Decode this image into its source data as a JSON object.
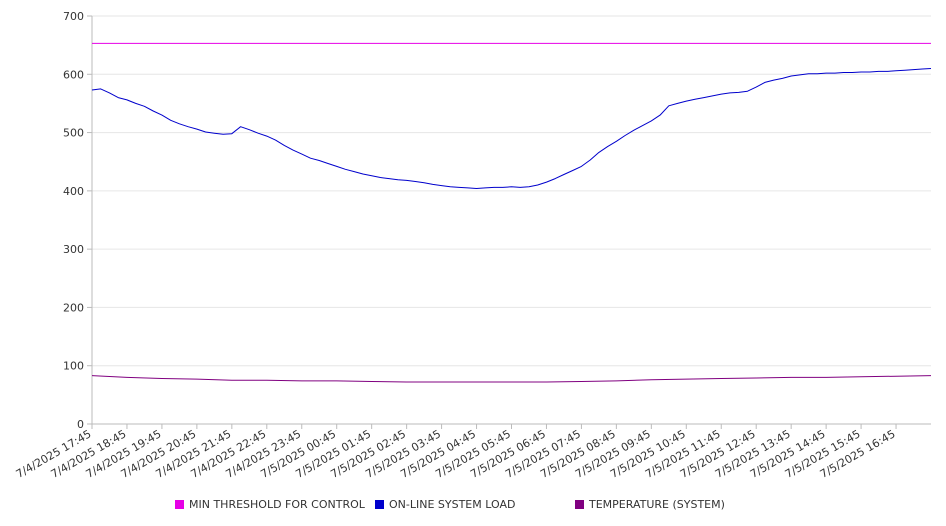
{
  "chart_data": {
    "type": "line",
    "ylim": [
      0,
      700
    ],
    "y_ticks": [
      "0",
      "100",
      "200",
      "300",
      "400",
      "500",
      "600",
      "700"
    ],
    "x_ticks": [
      "7/4/2025 17:45",
      "7/4/2025 18:45",
      "7/4/2025 19:45",
      "7/4/2025 20:45",
      "7/4/2025 21:45",
      "7/4/2025 22:45",
      "7/4/2025 23:45",
      "7/5/2025 00:45",
      "7/5/2025 01:45",
      "7/5/2025 02:45",
      "7/5/2025 03:45",
      "7/5/2025 04:45",
      "7/5/2025 05:45",
      "7/5/2025 06:45",
      "7/5/2025 07:45",
      "7/5/2025 08:45",
      "7/5/2025 09:45",
      "7/5/2025 10:45",
      "7/5/2025 11:45",
      "7/5/2025 12:45",
      "7/5/2025 13:45",
      "7/5/2025 14:45",
      "7/5/2025 15:45",
      "7/5/2025 16:45"
    ],
    "x_range": [
      "7/4/2025 17:45",
      "7/5/2025 17:45"
    ],
    "grid": true,
    "legend_position": "bottom",
    "series": [
      {
        "name": "MIN THRESHOLD FOR CONTROL",
        "color": "#e600e6",
        "points": [
          [
            "7/4/2025 17:45",
            653
          ],
          [
            "7/5/2025 17:45",
            653
          ]
        ]
      },
      {
        "name": "ON-LINE SYSTEM LOAD",
        "color": "#0000cc",
        "points": [
          [
            "7/4/2025 17:45",
            573
          ],
          [
            "7/4/2025 18:00",
            575
          ],
          [
            "7/4/2025 18:15",
            568
          ],
          [
            "7/4/2025 18:30",
            560
          ],
          [
            "7/4/2025 18:45",
            556
          ],
          [
            "7/4/2025 19:00",
            550
          ],
          [
            "7/4/2025 19:15",
            545
          ],
          [
            "7/4/2025 19:30",
            537
          ],
          [
            "7/4/2025 19:45",
            530
          ],
          [
            "7/4/2025 20:00",
            521
          ],
          [
            "7/4/2025 20:15",
            515
          ],
          [
            "7/4/2025 20:30",
            510
          ],
          [
            "7/4/2025 20:45",
            506
          ],
          [
            "7/4/2025 21:00",
            501
          ],
          [
            "7/4/2025 21:15",
            499
          ],
          [
            "7/4/2025 21:30",
            497
          ],
          [
            "7/4/2025 21:45",
            498
          ],
          [
            "7/4/2025 22:00",
            510
          ],
          [
            "7/4/2025 22:15",
            505
          ],
          [
            "7/4/2025 22:30",
            499
          ],
          [
            "7/4/2025 22:45",
            494
          ],
          [
            "7/4/2025 23:00",
            487
          ],
          [
            "7/4/2025 23:15",
            478
          ],
          [
            "7/4/2025 23:30",
            470
          ],
          [
            "7/4/2025 23:45",
            463
          ],
          [
            "7/5/2025 00:00",
            456
          ],
          [
            "7/5/2025 00:15",
            452
          ],
          [
            "7/5/2025 00:30",
            447
          ],
          [
            "7/5/2025 00:45",
            442
          ],
          [
            "7/5/2025 01:00",
            437
          ],
          [
            "7/5/2025 01:15",
            433
          ],
          [
            "7/5/2025 01:30",
            429
          ],
          [
            "7/5/2025 01:45",
            426
          ],
          [
            "7/5/2025 02:00",
            423
          ],
          [
            "7/5/2025 02:15",
            421
          ],
          [
            "7/5/2025 02:30",
            419
          ],
          [
            "7/5/2025 02:45",
            418
          ],
          [
            "7/5/2025 03:00",
            416
          ],
          [
            "7/5/2025 03:15",
            414
          ],
          [
            "7/5/2025 03:30",
            411
          ],
          [
            "7/5/2025 03:45",
            409
          ],
          [
            "7/5/2025 04:00",
            407
          ],
          [
            "7/5/2025 04:15",
            406
          ],
          [
            "7/5/2025 04:30",
            405
          ],
          [
            "7/5/2025 04:45",
            404
          ],
          [
            "7/5/2025 05:00",
            405
          ],
          [
            "7/5/2025 05:15",
            406
          ],
          [
            "7/5/2025 05:30",
            406
          ],
          [
            "7/5/2025 05:45",
            407
          ],
          [
            "7/5/2025 06:00",
            406
          ],
          [
            "7/5/2025 06:15",
            407
          ],
          [
            "7/5/2025 06:30",
            410
          ],
          [
            "7/5/2025 06:45",
            415
          ],
          [
            "7/5/2025 07:00",
            421
          ],
          [
            "7/5/2025 07:15",
            428
          ],
          [
            "7/5/2025 07:30",
            435
          ],
          [
            "7/5/2025 07:45",
            442
          ],
          [
            "7/5/2025 08:00",
            453
          ],
          [
            "7/5/2025 08:15",
            466
          ],
          [
            "7/5/2025 08:30",
            476
          ],
          [
            "7/5/2025 08:45",
            485
          ],
          [
            "7/5/2025 09:00",
            495
          ],
          [
            "7/5/2025 09:15",
            504
          ],
          [
            "7/5/2025 09:30",
            512
          ],
          [
            "7/5/2025 09:45",
            520
          ],
          [
            "7/5/2025 10:00",
            530
          ],
          [
            "7/5/2025 10:15",
            546
          ],
          [
            "7/5/2025 10:30",
            550
          ],
          [
            "7/5/2025 10:45",
            554
          ],
          [
            "7/5/2025 11:00",
            557
          ],
          [
            "7/5/2025 11:15",
            560
          ],
          [
            "7/5/2025 11:30",
            563
          ],
          [
            "7/5/2025 11:45",
            566
          ],
          [
            "7/5/2025 12:00",
            568
          ],
          [
            "7/5/2025 12:15",
            569
          ],
          [
            "7/5/2025 12:30",
            571
          ],
          [
            "7/5/2025 12:45",
            578
          ],
          [
            "7/5/2025 13:00",
            586
          ],
          [
            "7/5/2025 13:15",
            590
          ],
          [
            "7/5/2025 13:30",
            593
          ],
          [
            "7/5/2025 13:45",
            597
          ],
          [
            "7/5/2025 14:00",
            599
          ],
          [
            "7/5/2025 14:15",
            601
          ],
          [
            "7/5/2025 14:30",
            601
          ],
          [
            "7/5/2025 14:45",
            602
          ],
          [
            "7/5/2025 15:00",
            602
          ],
          [
            "7/5/2025 15:15",
            603
          ],
          [
            "7/5/2025 15:30",
            603
          ],
          [
            "7/5/2025 15:45",
            604
          ],
          [
            "7/5/2025 16:00",
            604
          ],
          [
            "7/5/2025 16:15",
            605
          ],
          [
            "7/5/2025 16:30",
            605
          ],
          [
            "7/5/2025 16:45",
            606
          ],
          [
            "7/5/2025 17:00",
            607
          ],
          [
            "7/5/2025 17:15",
            608
          ],
          [
            "7/5/2025 17:30",
            609
          ],
          [
            "7/5/2025 17:45",
            610
          ]
        ]
      },
      {
        "name": "TEMPERATURE (SYSTEM)",
        "color": "#800080",
        "points": [
          [
            "7/4/2025 17:45",
            83
          ],
          [
            "7/4/2025 18:45",
            80
          ],
          [
            "7/4/2025 19:45",
            78
          ],
          [
            "7/4/2025 20:45",
            77
          ],
          [
            "7/4/2025 21:45",
            75
          ],
          [
            "7/4/2025 22:45",
            75
          ],
          [
            "7/4/2025 23:45",
            74
          ],
          [
            "7/5/2025 00:45",
            74
          ],
          [
            "7/5/2025 01:45",
            73
          ],
          [
            "7/5/2025 02:45",
            72
          ],
          [
            "7/5/2025 03:45",
            72
          ],
          [
            "7/5/2025 04:45",
            72
          ],
          [
            "7/5/2025 05:45",
            72
          ],
          [
            "7/5/2025 06:45",
            72
          ],
          [
            "7/5/2025 07:45",
            73
          ],
          [
            "7/5/2025 08:45",
            74
          ],
          [
            "7/5/2025 09:45",
            76
          ],
          [
            "7/5/2025 10:45",
            77
          ],
          [
            "7/5/2025 11:45",
            78
          ],
          [
            "7/5/2025 12:45",
            79
          ],
          [
            "7/5/2025 13:45",
            80
          ],
          [
            "7/5/2025 14:45",
            80
          ],
          [
            "7/5/2025 15:45",
            81
          ],
          [
            "7/5/2025 16:45",
            82
          ],
          [
            "7/5/2025 17:45",
            83
          ]
        ]
      }
    ]
  }
}
